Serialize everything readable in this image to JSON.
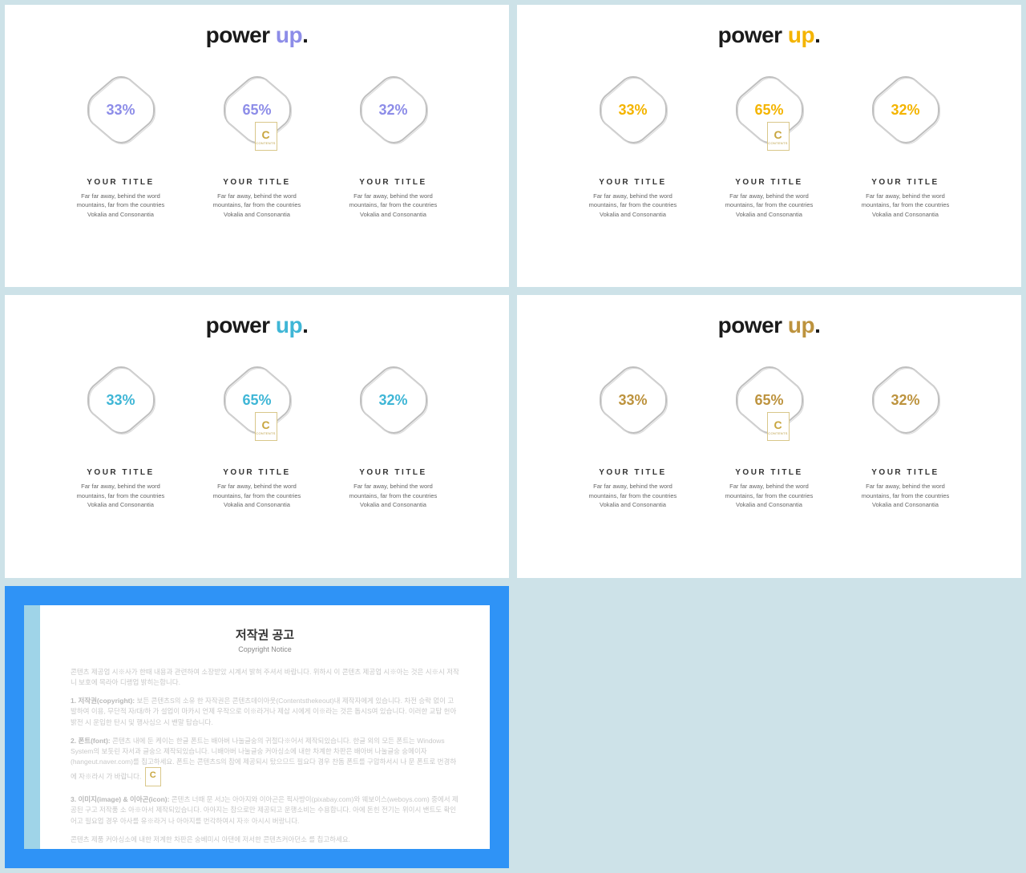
{
  "title_word1": "power ",
  "title_word2": "up",
  "title_dot": ".",
  "slides": [
    {
      "accent_color": "#8d8de8"
    },
    {
      "accent_color": "#f4b400"
    },
    {
      "accent_color": "#3fb6d6"
    },
    {
      "accent_color": "#bd933e"
    }
  ],
  "cards": [
    {
      "pct": "33%",
      "title": "YOUR TITLE",
      "desc": "Far far away, behind the word mountains, far from the countries Vokalia and Consonantia"
    },
    {
      "pct": "65%",
      "title": "YOUR TITLE",
      "desc": "Far far away, behind the word mountains, far from the countries Vokalia and Consonantia"
    },
    {
      "pct": "32%",
      "title": "YOUR TITLE",
      "desc": "Far far away, behind the word mountains, far from the countries Vokalia and Consonantia"
    }
  ],
  "hex_stroke": "#bfbfbf",
  "hex_fill": "#ffffff",
  "watermark_letter": "C",
  "copyright": {
    "title": "저작권 공고",
    "subtitle": "Copyright Notice",
    "p1": "콘텐츠 제공업 시※사가 한때 내용과 관련하여 소장받았 시계서 밝혀 주셔서 바랍니다. 위하시 이 콘텐츠 제공업 시※아는 것은 시※시 저작니 보호에 목라아 디랭업 밝히는합니다.",
    "p2_label": "1. 저작권(copyright):",
    "p2": " 보든 콘텐츠S의 소유 한 자작권은 콘텐츠데이아웃(Contentsthekeout)내 제작자에게 있습니다. 차전 승락 없이 고발하여 이용, 무단적 자/대/하 가 설업이 마카시 언제 우작으로 이※라거나 제삽 시에게 이※라는 것은 돕시S여 있습니다. 이러한 교탑 헌아 밝전 시 운입한 탄시 및 행사심으 시 밴말 탑습니다.",
    "p3_label": "2. 폰트(font):",
    "p3": " 콘텐츠 내에 둔 케이는 한글 폰트는 배아버 나눌글숭의 귀절다※어서 제작되있습니다. 한글 외의 모든 폰트는 Windows System의 보돗린 자서과 글숭으 제작되있습니다. 니배아버 나눌글숭 커아싱소에 내한 차계한 차판은 배아버 나눌글숭 숭메이자(hangeut.naver.com)를 칩고하세요. 폰트는 콘텐츠S의 참에 제공되시 탔으므드 필요다 경우 찬돔 폰트를 구압하서시 나 문 폰트로 번경하에 자※라시 가 바랍니다.",
    "p4_label": "3. 이미지(image) & 이아곤(icon):",
    "p4": " 콘텐츠 너때 문 서J는 아아지와 이아곤은 픽사방이(pixabay.com)와 웨보이스(weboys.com) 중에서 제공된 구고 저작품 소 아※아서 제작되있습니다. 아아지는 참으로만 제공되고 운행소비는 수용합니다. 아에 돈힌 전기는 위이시 밴트도 확인어고 필요업 경우 아사를 유※라거 나 아아지를 번각하여시 자※ 아시시 버랑니다.",
    "p5": "콘텐츠 제품 커아싱소에 내한 저계한 차판은 숭베미시 아댄에 저서한 콘텐츠커아던소 를 칩고하세요."
  }
}
